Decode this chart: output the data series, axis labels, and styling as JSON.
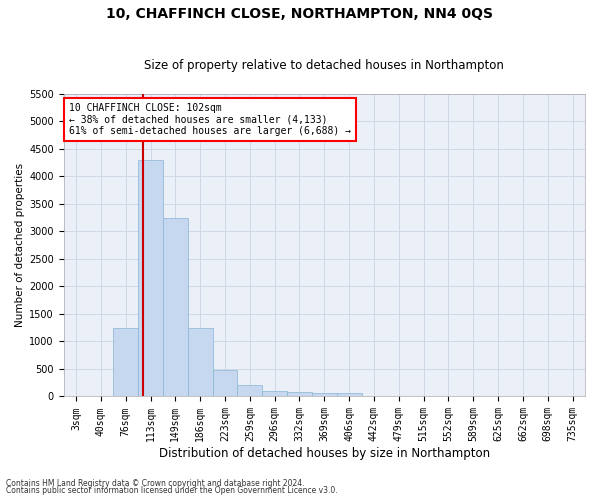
{
  "title": "10, CHAFFINCH CLOSE, NORTHAMPTON, NN4 0QS",
  "subtitle": "Size of property relative to detached houses in Northampton",
  "xlabel": "Distribution of detached houses by size in Northampton",
  "ylabel": "Number of detached properties",
  "footnote1": "Contains HM Land Registry data © Crown copyright and database right 2024.",
  "footnote2": "Contains public sector information licensed under the Open Government Licence v3.0.",
  "annotation_line1": "10 CHAFFINCH CLOSE: 102sqm",
  "annotation_line2": "← 38% of detached houses are smaller (4,133)",
  "annotation_line3": "61% of semi-detached houses are larger (6,688) →",
  "bar_color": "#c5d8f0",
  "bar_edge_color": "#8ab4d4",
  "vline_color": "#cc0000",
  "categories": [
    "3sqm",
    "40sqm",
    "76sqm",
    "113sqm",
    "149sqm",
    "186sqm",
    "223sqm",
    "259sqm",
    "296sqm",
    "332sqm",
    "369sqm",
    "406sqm",
    "442sqm",
    "479sqm",
    "515sqm",
    "552sqm",
    "589sqm",
    "625sqm",
    "662sqm",
    "698sqm",
    "735sqm"
  ],
  "values": [
    0,
    0,
    1250,
    4300,
    3250,
    1250,
    475,
    200,
    100,
    80,
    60,
    60,
    0,
    0,
    0,
    0,
    0,
    0,
    0,
    0,
    0
  ],
  "ylim": [
    0,
    5500
  ],
  "yticks": [
    0,
    500,
    1000,
    1500,
    2000,
    2500,
    3000,
    3500,
    4000,
    4500,
    5000,
    5500
  ],
  "grid_color": "#d0d8e8",
  "background_color": "#eaeff8",
  "title_fontsize": 10,
  "subtitle_fontsize": 8.5,
  "xlabel_fontsize": 8.5,
  "ylabel_fontsize": 7.5,
  "tick_fontsize": 7,
  "footnote_fontsize": 5.5,
  "annot_fontsize": 7
}
